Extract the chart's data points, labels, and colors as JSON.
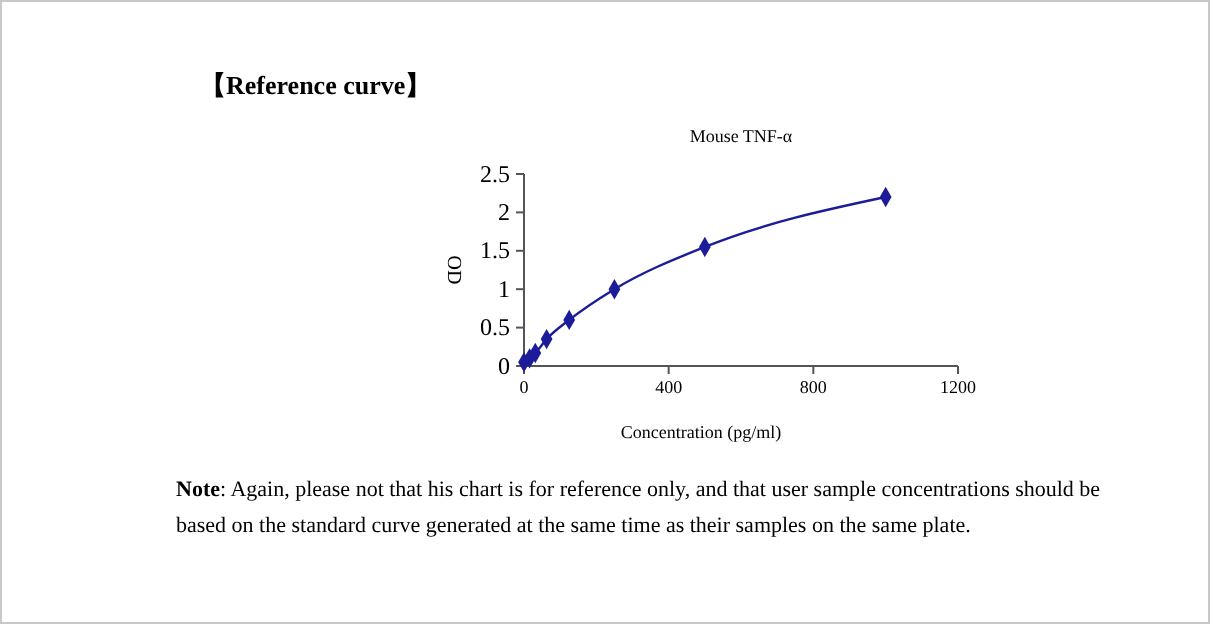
{
  "chart_data": {
    "type": "line",
    "title": "Mouse TNF-α",
    "xlabel": "Concentration (pg/ml)",
    "ylabel": "OD",
    "x": [
      0,
      15.6,
      31.25,
      62.5,
      125,
      250,
      500,
      1000
    ],
    "series": [
      {
        "color": "#1c1c9a",
        "values": [
          0.05,
          0.1,
          0.17,
          0.35,
          0.6,
          1.0,
          1.55,
          2.2
        ]
      }
    ],
    "xlim": [
      0,
      1200
    ],
    "xticks": [
      0,
      400,
      800,
      1200
    ],
    "ylim": [
      0,
      2.5
    ],
    "yticks": [
      0,
      0.5,
      1,
      1.5,
      2,
      2.5
    ],
    "marker": "diamond",
    "line_style": "solid",
    "grid": false,
    "annotations": [
      "【Reference curve】",
      "Note: Again, please not that his chart is for reference only, and that user sample concentrations should be based on the standard curve generated at the same time as their samples on the same plate."
    ]
  }
}
